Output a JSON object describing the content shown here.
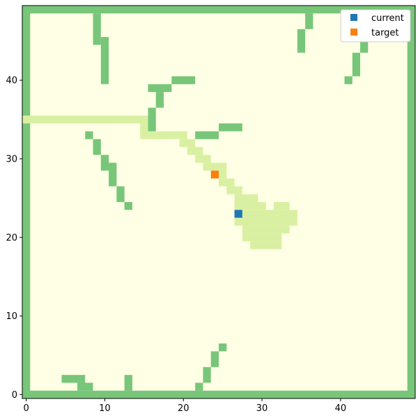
{
  "chart_data": {
    "type": "heatmap",
    "title": "",
    "xlabel": "",
    "ylabel": "",
    "xlim": [
      -0.5,
      49.5
    ],
    "ylim": [
      -0.5,
      49.5
    ],
    "x_ticks": [
      0,
      10,
      20,
      30,
      40
    ],
    "y_ticks": [
      0,
      10,
      20,
      30,
      40
    ],
    "colors": {
      "free": "#ffffe5",
      "wall": "#78c679",
      "path": "#d9f0a3",
      "current": "#1f77b4",
      "target": "#ff7f0e"
    },
    "wall_segments": [
      {
        "x": [
          0,
          49
        ],
        "y": [
          0,
          0
        ]
      },
      {
        "x": [
          0,
          49
        ],
        "y": [
          49,
          49
        ]
      },
      {
        "x": [
          0,
          0
        ],
        "y": [
          0,
          49
        ]
      },
      {
        "x": [
          49,
          49
        ],
        "y": [
          0,
          49
        ]
      },
      {
        "x": [
          9,
          9
        ],
        "y": [
          45,
          48
        ]
      },
      {
        "x": [
          10,
          10
        ],
        "y": [
          40,
          45
        ]
      },
      {
        "x": [
          36,
          36
        ],
        "y": [
          47,
          48
        ]
      },
      {
        "x": [
          35,
          35
        ],
        "y": [
          44,
          46
        ]
      },
      {
        "x": [
          44,
          44
        ],
        "y": [
          47,
          47
        ]
      },
      {
        "x": [
          43,
          43
        ],
        "y": [
          44,
          46
        ]
      },
      {
        "x": [
          42,
          42
        ],
        "y": [
          41,
          43
        ]
      },
      {
        "x": [
          41,
          41
        ],
        "y": [
          40,
          40
        ]
      },
      {
        "x": [
          19,
          21
        ],
        "y": [
          40,
          40
        ]
      },
      {
        "x": [
          16,
          18
        ],
        "y": [
          39,
          39
        ]
      },
      {
        "x": [
          17,
          17
        ],
        "y": [
          37,
          38
        ]
      },
      {
        "x": [
          16,
          16
        ],
        "y": [
          34,
          36
        ]
      },
      {
        "x": [
          25,
          27
        ],
        "y": [
          34,
          34
        ]
      },
      {
        "x": [
          22,
          24
        ],
        "y": [
          33,
          33
        ]
      },
      {
        "x": [
          8,
          8
        ],
        "y": [
          33,
          33
        ]
      },
      {
        "x": [
          9,
          9
        ],
        "y": [
          31,
          32
        ]
      },
      {
        "x": [
          10,
          10
        ],
        "y": [
          29,
          30
        ]
      },
      {
        "x": [
          11,
          11
        ],
        "y": [
          27,
          29
        ]
      },
      {
        "x": [
          12,
          12
        ],
        "y": [
          25,
          26
        ]
      },
      {
        "x": [
          13,
          13
        ],
        "y": [
          24,
          24
        ]
      },
      {
        "x": [
          25,
          25
        ],
        "y": [
          6,
          6
        ]
      },
      {
        "x": [
          24,
          24
        ],
        "y": [
          4,
          5
        ]
      },
      {
        "x": [
          23,
          23
        ],
        "y": [
          2,
          3
        ]
      },
      {
        "x": [
          22,
          22
        ],
        "y": [
          1,
          1
        ]
      },
      {
        "x": [
          5,
          7
        ],
        "y": [
          2,
          2
        ]
      },
      {
        "x": [
          7,
          8
        ],
        "y": [
          1,
          1
        ]
      },
      {
        "x": [
          13,
          13
        ],
        "y": [
          1,
          2
        ]
      }
    ],
    "path_segments": [
      {
        "x": [
          0,
          15
        ],
        "y": [
          35,
          35
        ]
      },
      {
        "x": [
          15,
          15
        ],
        "y": [
          34,
          34
        ]
      },
      {
        "x": [
          15,
          20
        ],
        "y": [
          33,
          33
        ]
      },
      {
        "x": [
          20,
          21
        ],
        "y": [
          32,
          32
        ]
      },
      {
        "x": [
          21,
          22
        ],
        "y": [
          31,
          31
        ]
      },
      {
        "x": [
          22,
          23
        ],
        "y": [
          30,
          30
        ]
      },
      {
        "x": [
          23,
          25
        ],
        "y": [
          29,
          29
        ]
      },
      {
        "x": [
          24,
          25
        ],
        "y": [
          28,
          28
        ]
      },
      {
        "x": [
          25,
          26
        ],
        "y": [
          27,
          27
        ]
      },
      {
        "x": [
          26,
          27
        ],
        "y": [
          26,
          26
        ]
      },
      {
        "x": [
          27,
          29
        ],
        "y": [
          25,
          25
        ]
      },
      {
        "x": [
          27,
          30
        ],
        "y": [
          24,
          24
        ]
      },
      {
        "x": [
          32,
          33
        ],
        "y": [
          24,
          24
        ]
      },
      {
        "x": [
          28,
          34
        ],
        "y": [
          23,
          23
        ]
      },
      {
        "x": [
          27,
          34
        ],
        "y": [
          22,
          22
        ]
      },
      {
        "x": [
          28,
          33
        ],
        "y": [
          21,
          21
        ]
      },
      {
        "x": [
          28,
          32
        ],
        "y": [
          20,
          20
        ]
      },
      {
        "x": [
          29,
          32
        ],
        "y": [
          19,
          19
        ]
      }
    ],
    "series": [
      {
        "name": "current",
        "x": 27,
        "y": 23
      },
      {
        "name": "target",
        "x": 24,
        "y": 28
      }
    ],
    "legend_position": "top-right"
  }
}
